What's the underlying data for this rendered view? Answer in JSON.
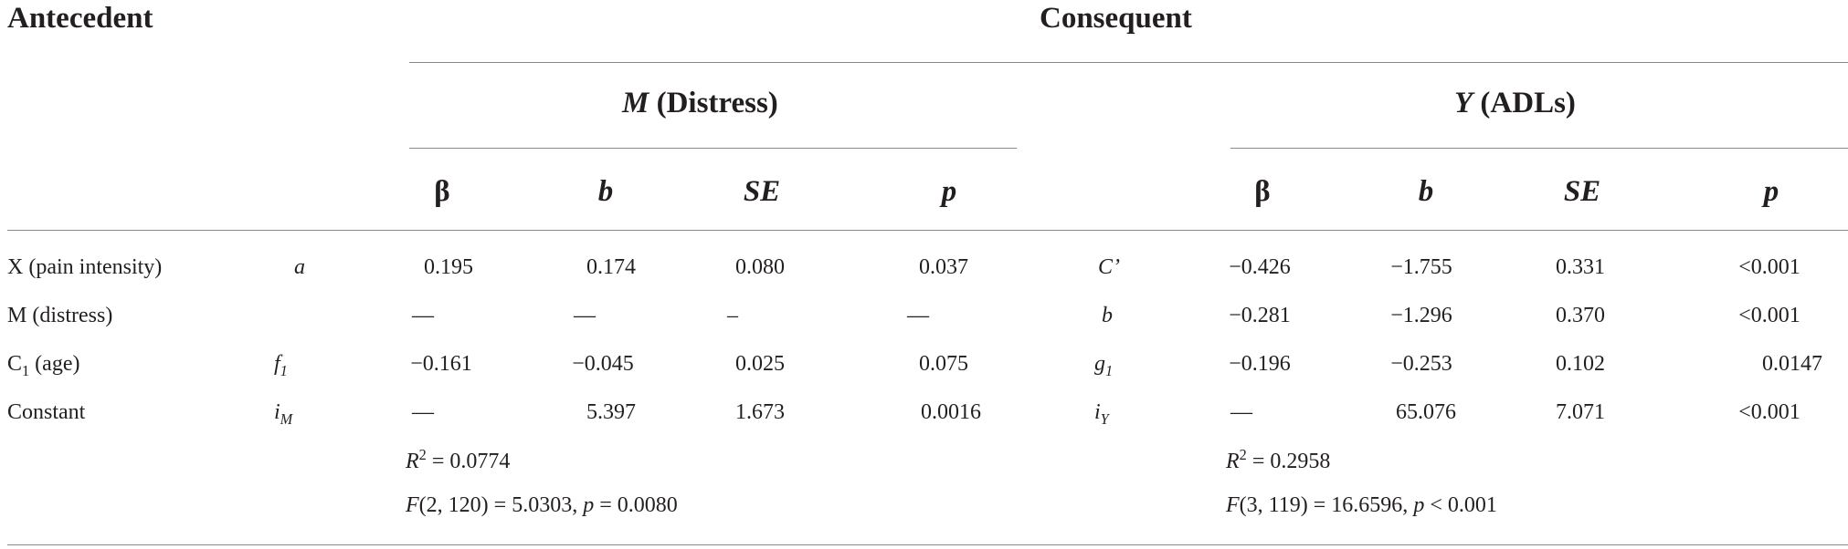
{
  "headers": {
    "antecedent": "Antecedent",
    "consequent": "Consequent",
    "m_group_var": "M",
    "m_group_label": "(Distress)",
    "y_group_var": "Y",
    "y_group_label": "(ADLs)"
  },
  "columns": {
    "beta": "β",
    "b": "b",
    "se": "SE",
    "p": "p"
  },
  "rows": [
    {
      "label_main": "X (pain intensity)",
      "label_sub": "",
      "m_path": "a",
      "m_path_sub": "",
      "m": [
        "0.195",
        "0.174",
        "0.080",
        "0.037"
      ],
      "y_path": "C’",
      "y_path_sub": "",
      "y": [
        "−0.426",
        "−1.755",
        "0.331",
        "<0.001"
      ]
    },
    {
      "label_main": "M (distress)",
      "label_sub": "",
      "m_path": "",
      "m_path_sub": "",
      "m": [
        "—",
        "—",
        "–",
        "—"
      ],
      "y_path": "b",
      "y_path_sub": "",
      "y": [
        "−0.281",
        "−1.296",
        "0.370",
        "<0.001"
      ]
    },
    {
      "label_main": "C",
      "label_sub": "1",
      "label_rest": " (age)",
      "m_path": "f",
      "m_path_sub": "1",
      "m": [
        "−0.161",
        "−0.045",
        "0.025",
        "0.075"
      ],
      "y_path": "g",
      "y_path_sub": "1",
      "y": [
        "−0.196",
        "−0.253",
        "0.102",
        "0.0147"
      ]
    },
    {
      "label_main": "Constant",
      "label_sub": "",
      "m_path": "i",
      "m_path_sub": "M",
      "m": [
        "—",
        "5.397",
        "1.673",
        "0.0016"
      ],
      "y_path": "i",
      "y_path_sub": "Y",
      "y": [
        "—",
        "65.076",
        "7.071",
        "<0.001"
      ]
    }
  ],
  "stats": {
    "m_r2_var": "R",
    "m_r2_exp": "2",
    "m_r2_val": " = 0.0774",
    "m_f_var": "F",
    "m_f_val": "(2, 120) = 5.0303, ",
    "m_p_var": "p",
    "m_p_val": " = 0.0080",
    "y_r2_var": "R",
    "y_r2_exp": "2",
    "y_r2_val": " = 0.2958",
    "y_f_var": "F",
    "y_f_val": "(3, 119) = 16.6596, ",
    "y_p_var": "p",
    "y_p_val": " < 0.001"
  }
}
